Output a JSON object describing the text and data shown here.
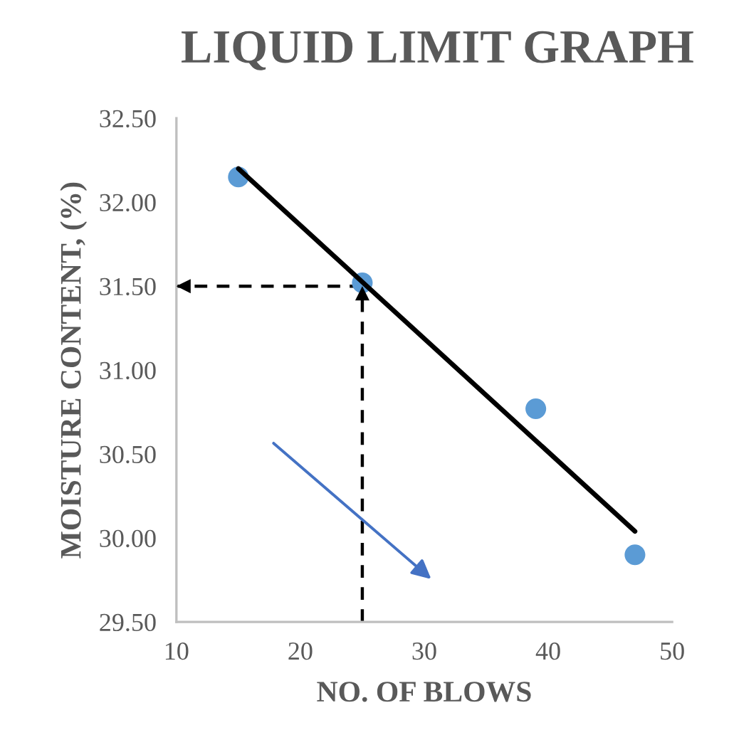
{
  "chart_data": {
    "type": "scatter",
    "title": "LIQUID LIMIT GRAPH",
    "xlabel": "NO. OF BLOWS",
    "ylabel": "MOISTURE CONTENT, (%)",
    "series": [
      {
        "color": "#5b9bd5",
        "x": [
          15,
          25,
          39,
          47
        ],
        "values": [
          32.15,
          31.52,
          30.77,
          29.9
        ],
        "marker": "circle"
      },
      {
        "type": "line",
        "color": "#000000",
        "x": [
          15,
          47
        ],
        "values": [
          32.2,
          30.04
        ],
        "line_style": "solid"
      },
      {
        "type": "line",
        "color": "#000000",
        "x": [
          25,
          10
        ],
        "values": [
          31.5,
          31.5
        ],
        "line_style": "dashed"
      },
      {
        "type": "line",
        "color": "#000000",
        "x": [
          25,
          25
        ],
        "values": [
          29.5,
          31.5
        ],
        "line_style": "dashed"
      }
    ],
    "xlim": [
      10,
      50
    ],
    "xticks": [
      10,
      20,
      30,
      40,
      50
    ],
    "ylim": [
      29.5,
      32.5
    ],
    "yticks": [
      {
        "value": 29.5,
        "label": "29.50"
      },
      {
        "value": 30,
        "label": "30.00"
      },
      {
        "value": 30.5,
        "label": "30.50"
      },
      {
        "value": 31,
        "label": "31.00"
      },
      {
        "value": 31.5,
        "label": "31.50"
      },
      {
        "value": 32,
        "label": "32.00"
      },
      {
        "value": 32.5,
        "label": "32.50"
      }
    ],
    "grid": false,
    "legend": false
  }
}
